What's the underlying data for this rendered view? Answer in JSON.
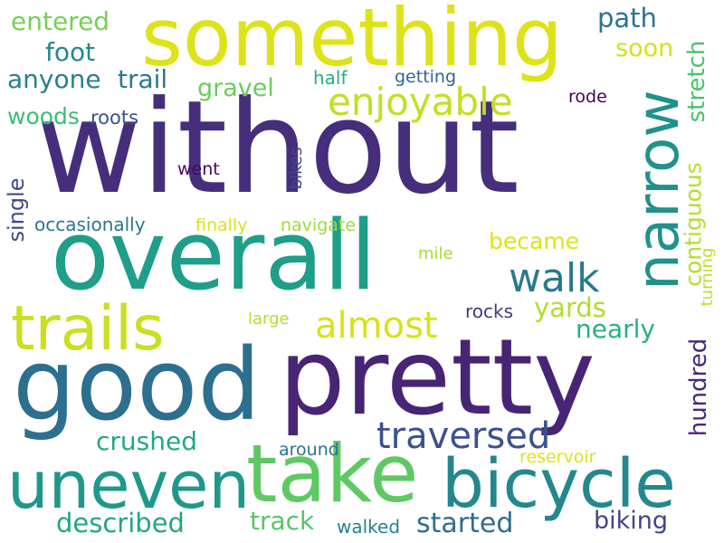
{
  "palette": [
    "#440154",
    "#472e7c",
    "#3b528b",
    "#2c728e",
    "#21918c",
    "#28ae80",
    "#5ec962",
    "#addc30",
    "#fde725"
  ],
  "words": [
    {
      "text": "without",
      "color": "#472e7c"
    },
    {
      "text": "something",
      "color": "#dde318"
    },
    {
      "text": "overall",
      "color": "#1f9e89"
    },
    {
      "text": "pretty",
      "color": "#482475"
    },
    {
      "text": "good",
      "color": "#2d6f8e"
    },
    {
      "text": "narrow",
      "color": "#21918c"
    },
    {
      "text": "take",
      "color": "#5ec962"
    },
    {
      "text": "uneven",
      "color": "#1f988b"
    },
    {
      "text": "bicycle",
      "color": "#24878e"
    },
    {
      "text": "trails",
      "color": "#c8e020"
    },
    {
      "text": "enjoyable",
      "color": "#c2df23"
    },
    {
      "text": "walk",
      "color": "#2a788e"
    },
    {
      "text": "almost",
      "color": "#d8e219"
    },
    {
      "text": "traversed",
      "color": "#3b518b"
    },
    {
      "text": "entered",
      "color": "#75d054"
    },
    {
      "text": "foot",
      "color": "#23898e"
    },
    {
      "text": "anyone",
      "color": "#27808e"
    },
    {
      "text": "trail",
      "color": "#2a788e"
    },
    {
      "text": "woods",
      "color": "#3dbc74"
    },
    {
      "text": "roots",
      "color": "#3b528b"
    },
    {
      "text": "gravel",
      "color": "#6ccd5a"
    },
    {
      "text": "path",
      "color": "#2c738e"
    },
    {
      "text": "soon",
      "color": "#d2e21b"
    },
    {
      "text": "stretch",
      "color": "#4ac16d"
    },
    {
      "text": "half",
      "color": "#27ad81"
    },
    {
      "text": "getting",
      "color": "#31688e"
    },
    {
      "text": "rode",
      "color": "#440154"
    },
    {
      "text": "went",
      "color": "#46085c"
    },
    {
      "text": "bikes",
      "color": "#3f4889"
    },
    {
      "text": "single",
      "color": "#3e4a89"
    },
    {
      "text": "occasionally",
      "color": "#2b758e"
    },
    {
      "text": "finally",
      "color": "#d8e219"
    },
    {
      "text": "navigate",
      "color": "#a0da39"
    },
    {
      "text": "became",
      "color": "#dde318"
    },
    {
      "text": "contiguous",
      "color": "#b5de2b"
    },
    {
      "text": "turning",
      "color": "#c0df25"
    },
    {
      "text": "mile",
      "color": "#a8db34"
    },
    {
      "text": "large",
      "color": "#b2dd2d"
    },
    {
      "text": "rocks",
      "color": "#453781"
    },
    {
      "text": "yards",
      "color": "#b0dd2f"
    },
    {
      "text": "nearly",
      "color": "#29af7f"
    },
    {
      "text": "hundred",
      "color": "#482878"
    },
    {
      "text": "crushed",
      "color": "#22a785"
    },
    {
      "text": "around",
      "color": "#2c738e"
    },
    {
      "text": "reservoir",
      "color": "#dde318"
    },
    {
      "text": "described",
      "color": "#21a685"
    },
    {
      "text": "track",
      "color": "#54c568"
    },
    {
      "text": "walked",
      "color": "#25838e"
    },
    {
      "text": "started",
      "color": "#2e6d8e"
    },
    {
      "text": "biking",
      "color": "#404688"
    }
  ]
}
